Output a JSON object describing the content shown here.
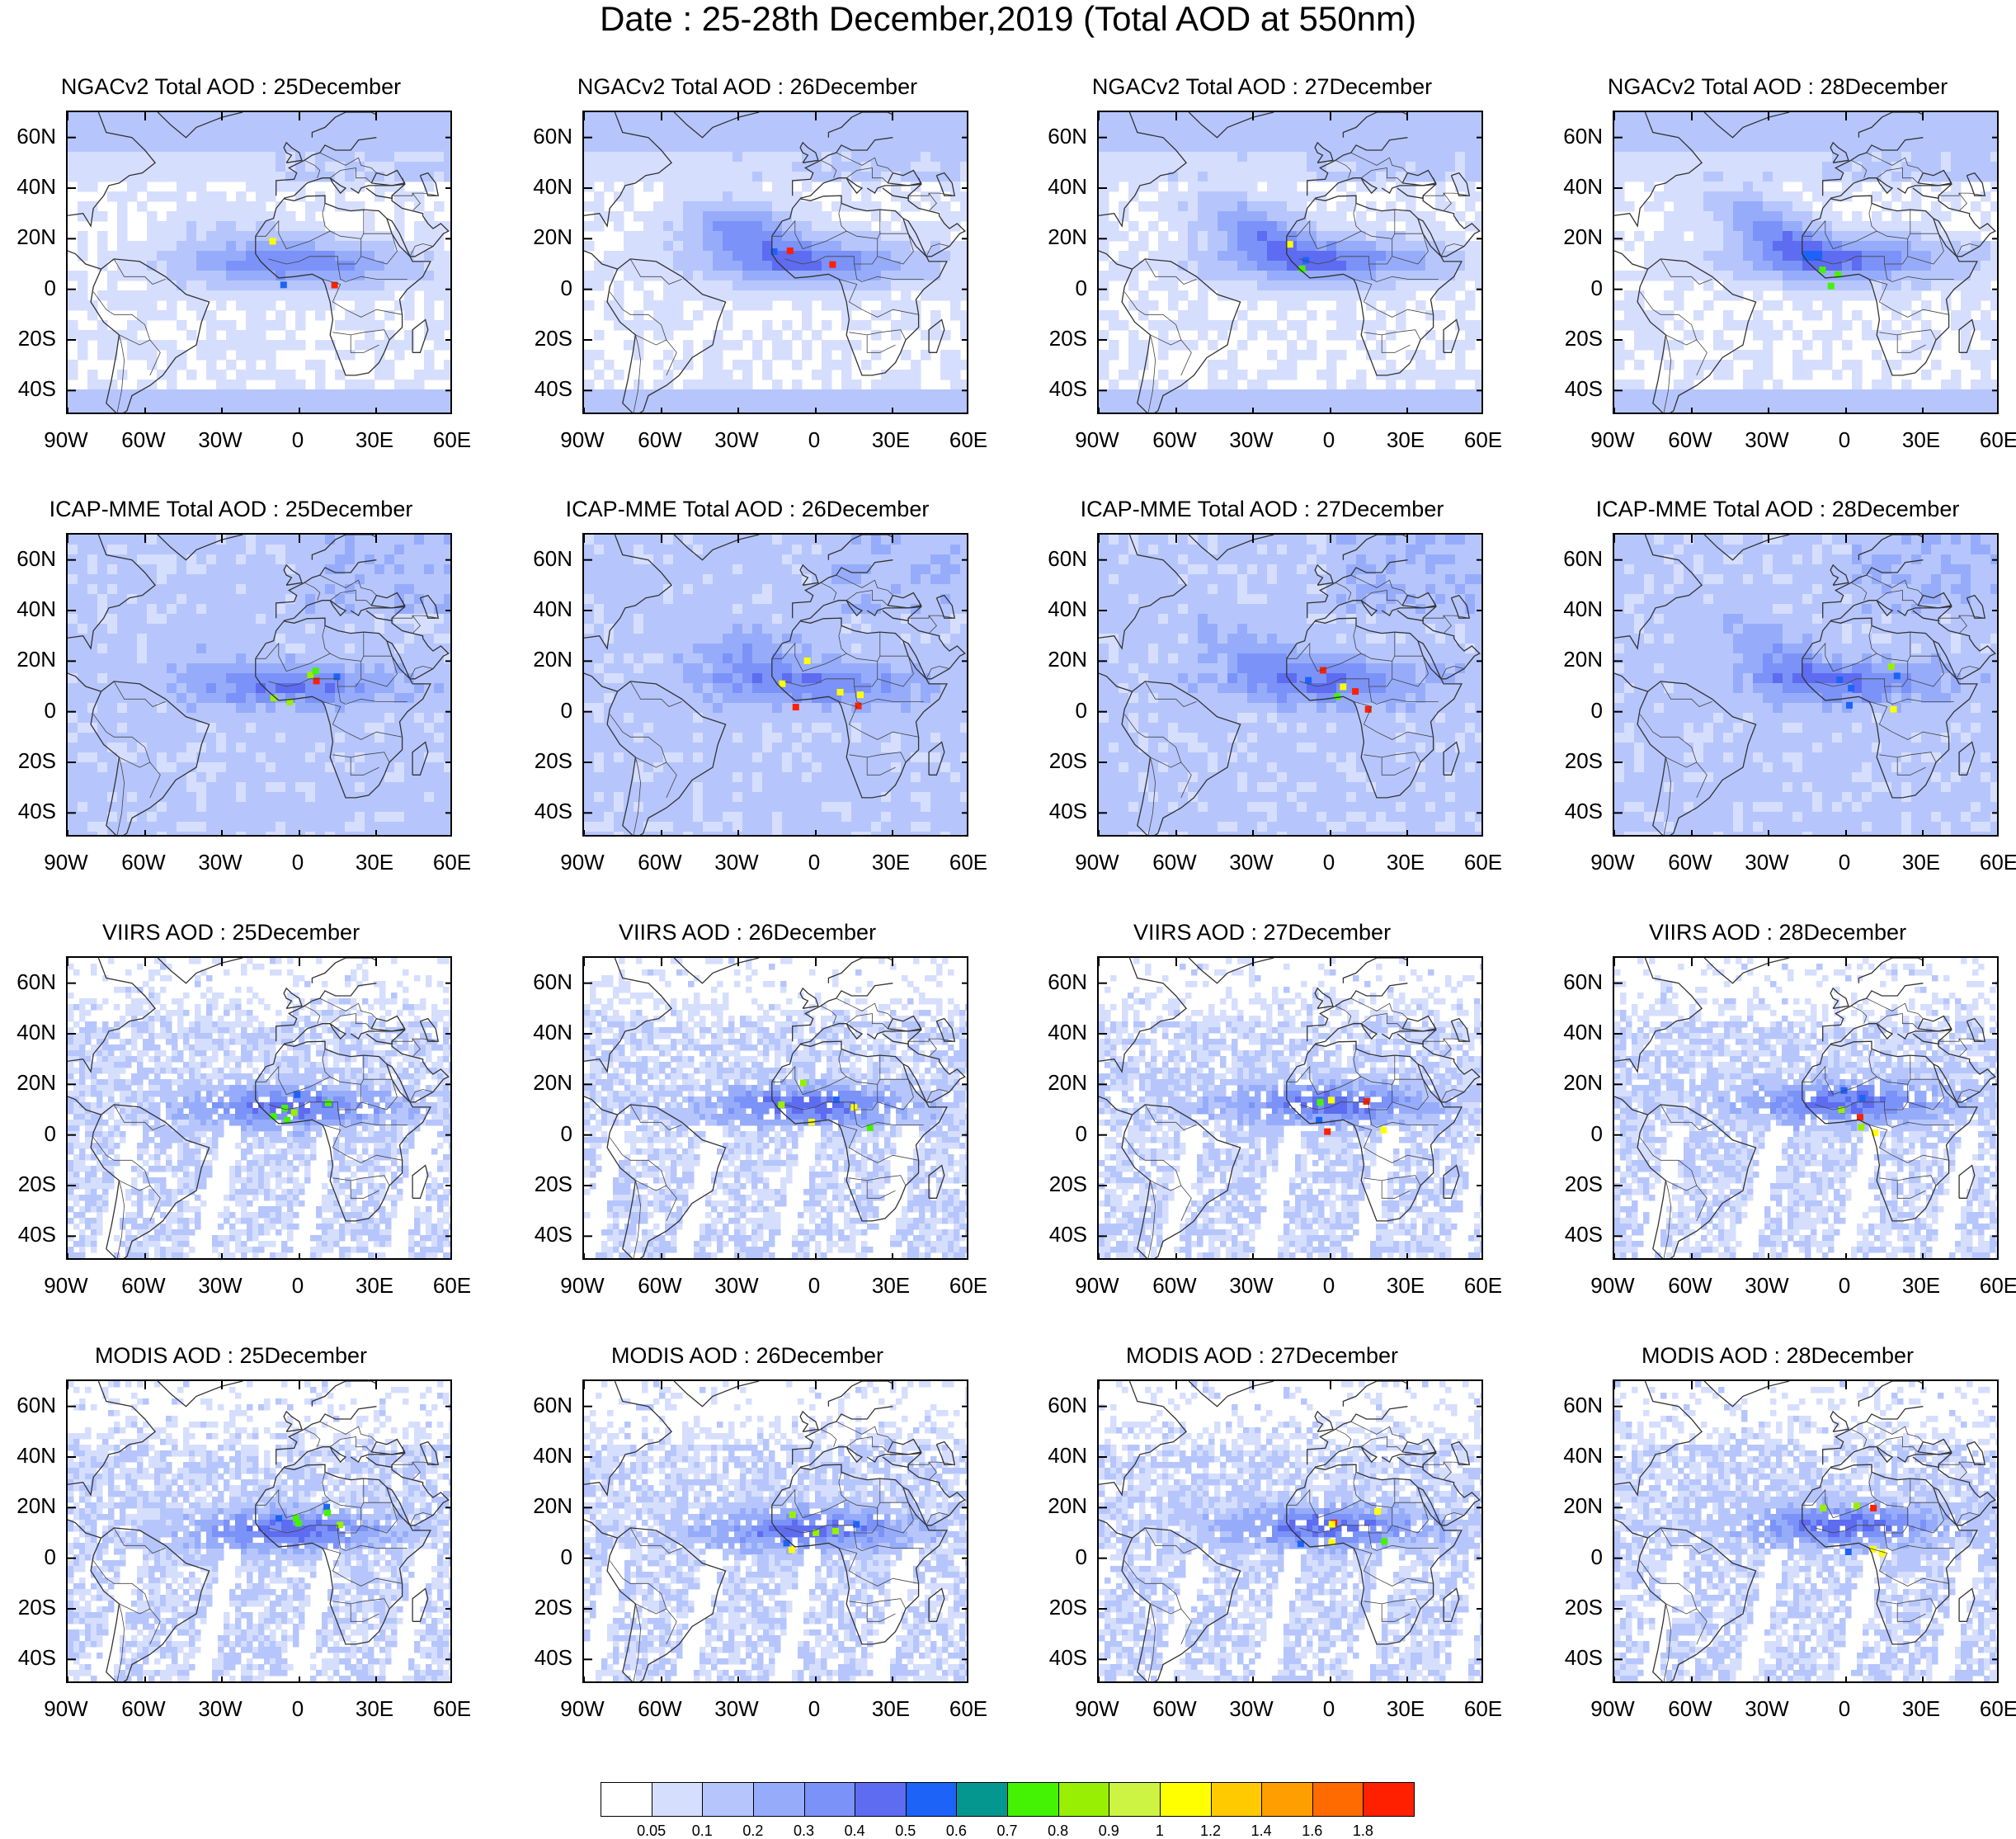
{
  "title": "Date : 25-28th December,2019 (Total AOD at 550nm)",
  "lat_labels": [
    "60N",
    "40N",
    "20N",
    "0",
    "20S",
    "40S"
  ],
  "lon_labels": [
    "90W",
    "60W",
    "30W",
    "0",
    "30E",
    "60E"
  ],
  "panels": [
    {
      "title": "NGACv2 Total AOD : 25December",
      "model": "ngac",
      "day": 0
    },
    {
      "title": "NGACv2 Total AOD : 26December",
      "model": "ngac",
      "day": 1
    },
    {
      "title": "NGACv2 Total AOD : 27December",
      "model": "ngac",
      "day": 2
    },
    {
      "title": "NGACv2 Total AOD : 28December",
      "model": "ngac",
      "day": 3
    },
    {
      "title": "ICAP-MME Total AOD : 25December",
      "model": "icap",
      "day": 0
    },
    {
      "title": "ICAP-MME Total AOD : 26December",
      "model": "icap",
      "day": 1
    },
    {
      "title": "ICAP-MME Total AOD : 27December",
      "model": "icap",
      "day": 2
    },
    {
      "title": "ICAP-MME Total AOD : 28December",
      "model": "icap",
      "day": 3
    },
    {
      "title": "VIIRS AOD : 25December",
      "model": "viirs",
      "day": 0
    },
    {
      "title": "VIIRS AOD : 26December",
      "model": "viirs",
      "day": 1
    },
    {
      "title": "VIIRS AOD : 27December",
      "model": "viirs",
      "day": 2
    },
    {
      "title": "VIIRS AOD : 28December",
      "model": "viirs",
      "day": 3
    },
    {
      "title": "MODIS AOD : 25December",
      "model": "modis",
      "day": 0
    },
    {
      "title": "MODIS AOD : 26December",
      "model": "modis",
      "day": 1
    },
    {
      "title": "MODIS AOD : 27December",
      "model": "modis",
      "day": 2
    },
    {
      "title": "MODIS AOD : 28December",
      "model": "modis",
      "day": 3
    }
  ],
  "colorbar": {
    "colors": [
      "#ffffff",
      "#d6defe",
      "#b6c6fc",
      "#96acfb",
      "#7b92f8",
      "#5d6cf0",
      "#1d63f8",
      "#04978f",
      "#44f204",
      "#98ef03",
      "#cdf443",
      "#ffff00",
      "#ffcb00",
      "#ff9e00",
      "#ff6b00",
      "#ff2000"
    ],
    "labels": [
      "0.05",
      "0.1",
      "0.2",
      "0.3",
      "0.4",
      "0.5",
      "0.6",
      "0.7",
      "0.8",
      "0.9",
      "1",
      "1.2",
      "1.4",
      "1.6",
      "1.8"
    ]
  }
}
